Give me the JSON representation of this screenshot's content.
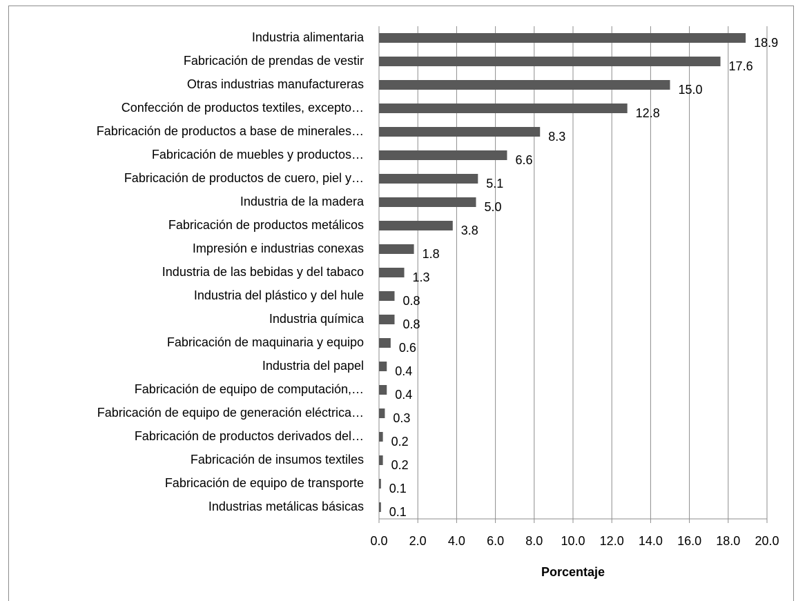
{
  "chart_data": {
    "type": "bar",
    "orientation": "horizontal",
    "x_label": "Porcentaje",
    "categories": [
      "Industria alimentaria",
      "Fabricación de prendas de vestir",
      "Otras industrias manufactureras",
      "Confección de productos textiles, excepto…",
      "Fabricación de productos a base de minerales…",
      "Fabricación de muebles y productos…",
      "Fabricación de productos de cuero, piel y…",
      "Industria de la madera",
      "Fabricación de productos metálicos",
      "Impresión e industrias conexas",
      "Industria de las bebidas y del tabaco",
      "Industria del plástico y del hule",
      "Industria química",
      "Fabricación de maquinaria y equipo",
      "Industria del papel",
      "Fabricación de equipo de computación,…",
      "Fabricación de equipo de generación eléctrica…",
      "Fabricación de productos derivados del…",
      "Fabricación de insumos textiles",
      "Fabricación de equipo de transporte",
      "Industrias metálicas básicas"
    ],
    "values": [
      18.9,
      17.6,
      15.0,
      12.8,
      8.3,
      6.6,
      5.1,
      5.0,
      3.8,
      1.8,
      1.3,
      0.8,
      0.8,
      0.6,
      0.4,
      0.4,
      0.3,
      0.2,
      0.2,
      0.1,
      0.1
    ],
    "value_labels": [
      "18.9",
      "17.6",
      "15.0",
      "12.8",
      "8.3",
      "6.6",
      "5.1",
      "5.0",
      "3.8",
      "1.8",
      "1.3",
      "0.8",
      "0.8",
      "0.6",
      "0.4",
      "0.4",
      "0.3",
      "0.2",
      "0.2",
      "0.1",
      "0.1"
    ],
    "color": "#595959",
    "xlim": [
      0,
      20
    ],
    "xticks": [
      {
        "value": 0,
        "label": "0.0"
      },
      {
        "value": 2,
        "label": "2.0"
      },
      {
        "value": 4,
        "label": "4.0"
      },
      {
        "value": 6,
        "label": "6.0"
      },
      {
        "value": 8,
        "label": "8.0"
      },
      {
        "value": 10,
        "label": "10.0"
      },
      {
        "value": 12,
        "label": "12.0"
      },
      {
        "value": 14,
        "label": "14.0"
      },
      {
        "value": 16,
        "label": "16.0"
      },
      {
        "value": 18,
        "label": "18.0"
      },
      {
        "value": 20,
        "label": "20.0"
      }
    ],
    "grid": true
  }
}
